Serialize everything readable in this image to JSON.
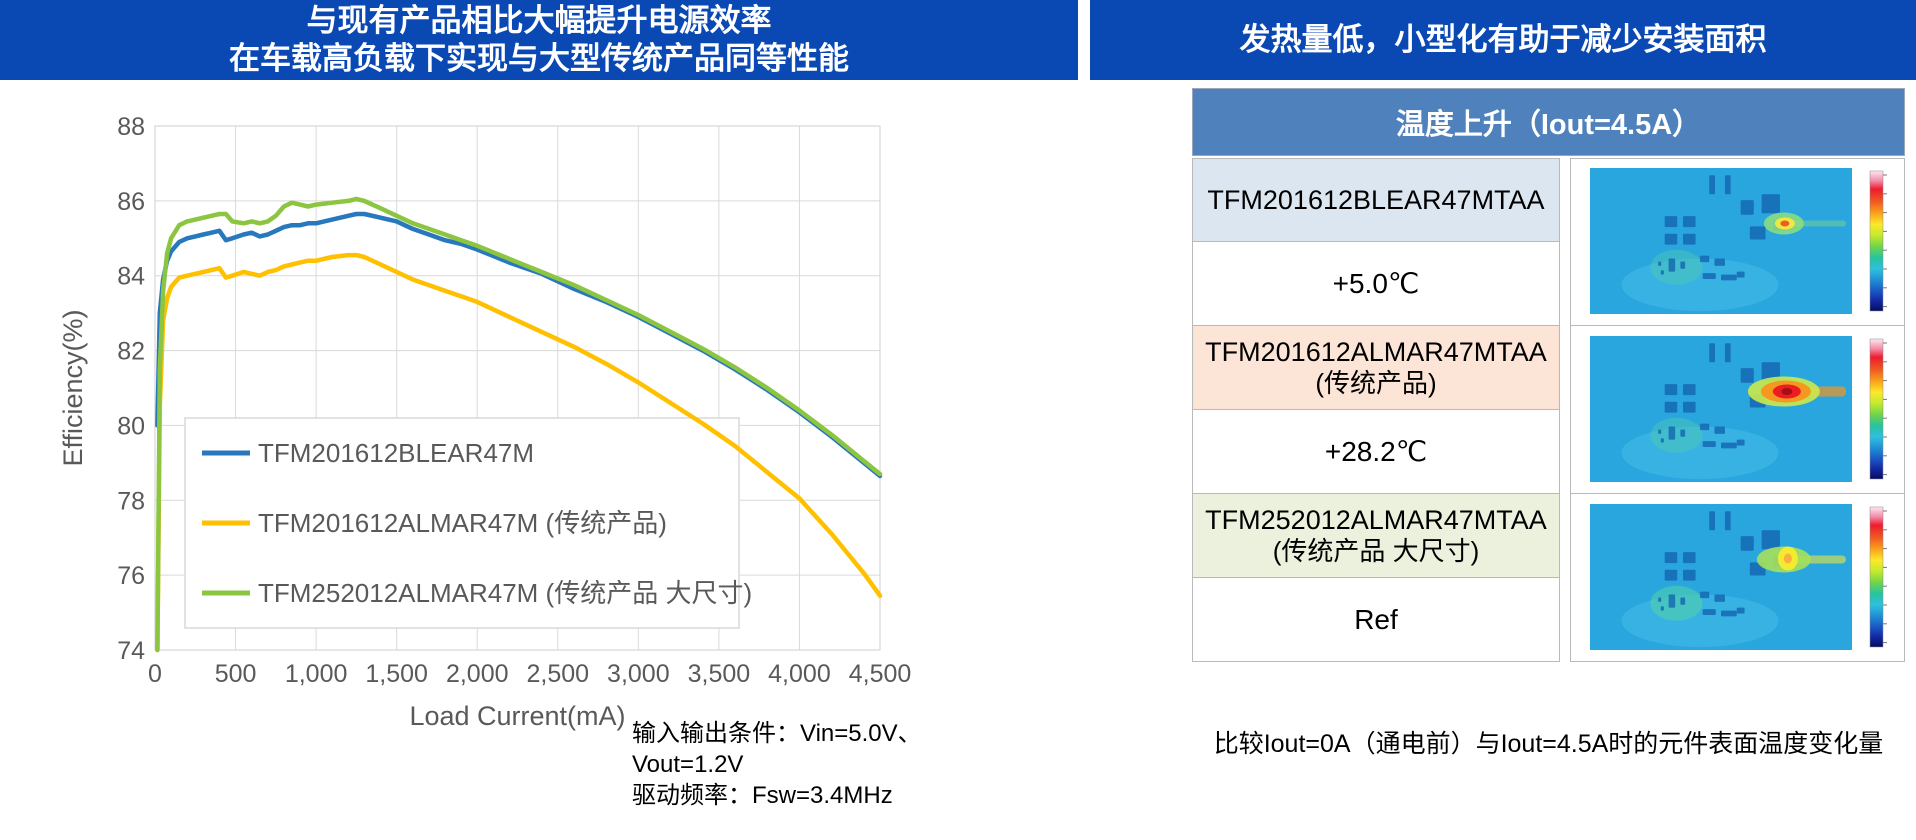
{
  "left_panel": {
    "header": {
      "line1": "与现有产品相比大幅提升电源效率",
      "line2": "在车载高负载下实现与大型传统产品同等性能",
      "bg": "#0a49b4"
    },
    "conditions": {
      "line1": "输入输出条件：Vin=5.0V、",
      "line2": "Vout=1.2V",
      "line3": "驱动频率：Fsw=3.4MHz"
    }
  },
  "chart_data": {
    "type": "line",
    "title": "",
    "xlabel": "Load Current(mA)",
    "ylabel": "Efficiency(%)",
    "xlim": [
      0,
      4500
    ],
    "ylim": [
      74,
      88
    ],
    "grid": true,
    "legend_position": "inside-bottom-left",
    "x_ticks": [
      0,
      500,
      1000,
      1500,
      2000,
      2500,
      3000,
      3500,
      4000,
      4500
    ],
    "x_tick_labels": [
      "0",
      "500",
      "1,000",
      "1,500",
      "2,000",
      "2,500",
      "3,000",
      "3,500",
      "4,000",
      "4,500"
    ],
    "y_ticks": [
      74,
      76,
      78,
      80,
      82,
      84,
      86,
      88
    ],
    "x_shared": [
      15,
      30,
      50,
      75,
      100,
      150,
      200,
      250,
      300,
      350,
      400,
      440,
      480,
      550,
      600,
      650,
      700,
      750,
      800,
      850,
      900,
      950,
      1000,
      1100,
      1200,
      1250,
      1300,
      1400,
      1500,
      1600,
      1700,
      1800,
      1900,
      2000,
      2200,
      2400,
      2600,
      2800,
      3000,
      3200,
      3400,
      3600,
      3800,
      4000,
      4200,
      4400,
      4500
    ],
    "series": [
      {
        "name": "TFM201612BLEAR47M",
        "color": "#2878BE",
        "y": [
          80.0,
          83.0,
          83.9,
          84.4,
          84.65,
          84.9,
          85.0,
          85.05,
          85.1,
          85.15,
          85.2,
          84.95,
          85.0,
          85.1,
          85.15,
          85.05,
          85.1,
          85.2,
          85.3,
          85.35,
          85.35,
          85.4,
          85.4,
          85.5,
          85.6,
          85.65,
          85.65,
          85.55,
          85.45,
          85.25,
          85.1,
          84.95,
          84.85,
          84.7,
          84.35,
          84.05,
          83.65,
          83.3,
          82.9,
          82.45,
          82.0,
          81.5,
          80.95,
          80.35,
          79.7,
          79.0,
          78.65
        ]
      },
      {
        "name": "TFM201612ALMAR47M (传统产品)",
        "color": "#FFC000",
        "y": [
          74.0,
          80.5,
          82.8,
          83.4,
          83.7,
          83.95,
          84.0,
          84.05,
          84.1,
          84.15,
          84.2,
          83.95,
          84.0,
          84.1,
          84.05,
          84.0,
          84.1,
          84.15,
          84.25,
          84.3,
          84.35,
          84.4,
          84.4,
          84.5,
          84.55,
          84.55,
          84.5,
          84.3,
          84.1,
          83.9,
          83.75,
          83.6,
          83.45,
          83.3,
          82.9,
          82.5,
          82.1,
          81.65,
          81.15,
          80.6,
          80.05,
          79.45,
          78.75,
          78.05,
          77.1,
          76.05,
          75.45
        ]
      },
      {
        "name": "TFM252012ALMAR47M (传统产品 大尺寸)",
        "color": "#8CC540",
        "y": [
          74.0,
          81.5,
          83.6,
          84.6,
          85.0,
          85.35,
          85.45,
          85.5,
          85.55,
          85.6,
          85.65,
          85.65,
          85.45,
          85.4,
          85.45,
          85.4,
          85.45,
          85.6,
          85.85,
          85.95,
          85.9,
          85.85,
          85.9,
          85.95,
          86.0,
          86.05,
          86.0,
          85.8,
          85.6,
          85.4,
          85.25,
          85.1,
          84.95,
          84.8,
          84.45,
          84.1,
          83.75,
          83.35,
          82.95,
          82.5,
          82.05,
          81.55,
          81.0,
          80.4,
          79.75,
          79.05,
          78.7
        ]
      }
    ]
  },
  "right_panel": {
    "header": {
      "text": "发热量低，小型化有助于减少安装面积",
      "bg": "#0a49b4"
    },
    "table": {
      "title": "温度上升（Iout=4.5A）",
      "title_bg": "#4f81bd",
      "rows": [
        {
          "product": "TFM201612BLEAR47MTAA",
          "product_note": "",
          "value": "+5.0℃",
          "label_bg": "#dce6f1",
          "thermal": "small-hotspot-thermal-image"
        },
        {
          "product": "TFM201612ALMAR47MTAA",
          "product_note": "(传统产品)",
          "value": "+28.2℃",
          "label_bg": "#fce4d6",
          "thermal": "large-hotspot-thermal-image"
        },
        {
          "product": "TFM252012ALMAR47MTAA",
          "product_note": "(传统产品 大尺寸)",
          "value": "Ref",
          "label_bg": "#ebf1dd",
          "thermal": "medium-hotspot-thermal-image"
        }
      ]
    },
    "footnote": "比较Iout=0A（通电前）与Iout=4.5A时的元件表面温度变化量"
  }
}
